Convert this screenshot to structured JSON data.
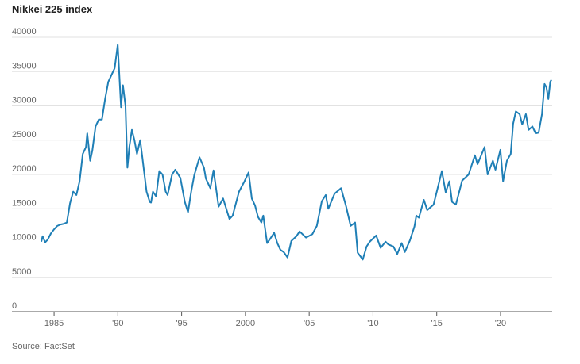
{
  "chart_data": {
    "type": "line",
    "title": "Nikkei 225 index",
    "source": "Source: FactSet",
    "x": [
      1984.0,
      1984.1,
      1984.3,
      1984.5,
      1984.75,
      1985.0,
      1985.25,
      1985.5,
      1985.75,
      1986.0,
      1986.25,
      1986.5,
      1986.75,
      1987.0,
      1987.25,
      1987.5,
      1987.6,
      1987.83,
      1988.0,
      1988.25,
      1988.5,
      1988.75,
      1989.0,
      1989.25,
      1989.5,
      1989.75,
      1989.99,
      1990.25,
      1990.4,
      1990.6,
      1990.75,
      1990.9,
      1991.1,
      1991.3,
      1991.5,
      1991.75,
      1991.9,
      1992.25,
      1992.5,
      1992.6,
      1992.75,
      1993.0,
      1993.25,
      1993.5,
      1993.75,
      1993.9,
      1994.25,
      1994.5,
      1994.9,
      1995.25,
      1995.5,
      1995.75,
      1995.99,
      1996.4,
      1996.75,
      1996.9,
      1997.25,
      1997.5,
      1997.9,
      1998.25,
      1998.75,
      1999.0,
      1999.5,
      1999.9,
      2000.25,
      2000.5,
      2000.75,
      2000.99,
      2001.25,
      2001.4,
      2001.7,
      2001.9,
      2002.25,
      2002.5,
      2002.75,
      2003.0,
      2003.3,
      2003.6,
      2004.0,
      2004.25,
      2004.75,
      2005.25,
      2005.6,
      2005.99,
      2006.3,
      2006.5,
      2006.99,
      2007.5,
      2007.9,
      2008.25,
      2008.6,
      2008.8,
      2009.2,
      2009.5,
      2009.75,
      2010.25,
      2010.6,
      2010.99,
      2011.2,
      2011.6,
      2011.9,
      2012.25,
      2012.5,
      2012.9,
      2013.25,
      2013.4,
      2013.6,
      2013.99,
      2014.25,
      2014.75,
      2014.99,
      2015.4,
      2015.7,
      2015.99,
      2016.2,
      2016.5,
      2016.99,
      2017.5,
      2017.99,
      2018.2,
      2018.75,
      2018.99,
      2019.4,
      2019.6,
      2019.99,
      2020.2,
      2020.5,
      2020.8,
      2020.99,
      2021.2,
      2021.5,
      2021.7,
      2021.99,
      2022.2,
      2022.5,
      2022.75,
      2022.99,
      2023.25,
      2023.45,
      2023.6,
      2023.75,
      2023.9,
      2023.99
    ],
    "series": [
      {
        "name": "Nikkei 225",
        "color": "#1f7fb6",
        "values": [
          10200,
          11000,
          10100,
          10500,
          11400,
          12000,
          12500,
          12700,
          12800,
          13000,
          15800,
          17500,
          17000,
          19000,
          23000,
          24000,
          26000,
          22000,
          23500,
          27000,
          28000,
          28000,
          31000,
          33500,
          34500,
          35500,
          38900,
          29800,
          33000,
          30000,
          21000,
          24000,
          26500,
          25000,
          23000,
          25000,
          22800,
          17500,
          16000,
          15900,
          17500,
          16800,
          20500,
          20000,
          17500,
          17000,
          20000,
          20700,
          19500,
          16000,
          14500,
          17500,
          19900,
          22500,
          21000,
          19400,
          18000,
          20600,
          15300,
          16500,
          13500,
          14000,
          17500,
          18900,
          20300,
          16500,
          15500,
          13800,
          13000,
          14000,
          10000,
          10500,
          11500,
          10000,
          9000,
          8700,
          7900,
          10300,
          11000,
          11700,
          10800,
          11300,
          12500,
          16100,
          17000,
          15000,
          17200,
          18000,
          15300,
          12500,
          13000,
          8600,
          7600,
          9500,
          10200,
          11100,
          9300,
          10200,
          9800,
          9500,
          8400,
          10000,
          8700,
          10400,
          12400,
          14000,
          13700,
          16300,
          14800,
          15600,
          17400,
          20500,
          17400,
          19000,
          16000,
          15600,
          19100,
          20000,
          22800,
          21500,
          24000,
          20000,
          22000,
          20700,
          23600,
          19000,
          22000,
          23000,
          27400,
          29200,
          28800,
          27300,
          28800,
          26500,
          27000,
          26000,
          26100,
          28800,
          33200,
          32700,
          31000,
          33500,
          33800
        ]
      }
    ],
    "xlim": [
      1983.75,
      2024.05
    ],
    "xticks": [
      1985,
      {
        "value": 1990,
        "label": "'90"
      },
      {
        "value": 1995,
        "label": "'95"
      },
      2000,
      {
        "value": 2005,
        "label": "'05"
      },
      {
        "value": 2010,
        "label": "'10"
      },
      {
        "value": 2015,
        "label": "'15"
      },
      {
        "value": 2020,
        "label": "'20"
      }
    ],
    "ylim": [
      0,
      40000
    ],
    "yticks": [
      0,
      5000,
      10000,
      15000,
      20000,
      25000,
      30000,
      35000,
      40000
    ],
    "grid": true
  }
}
